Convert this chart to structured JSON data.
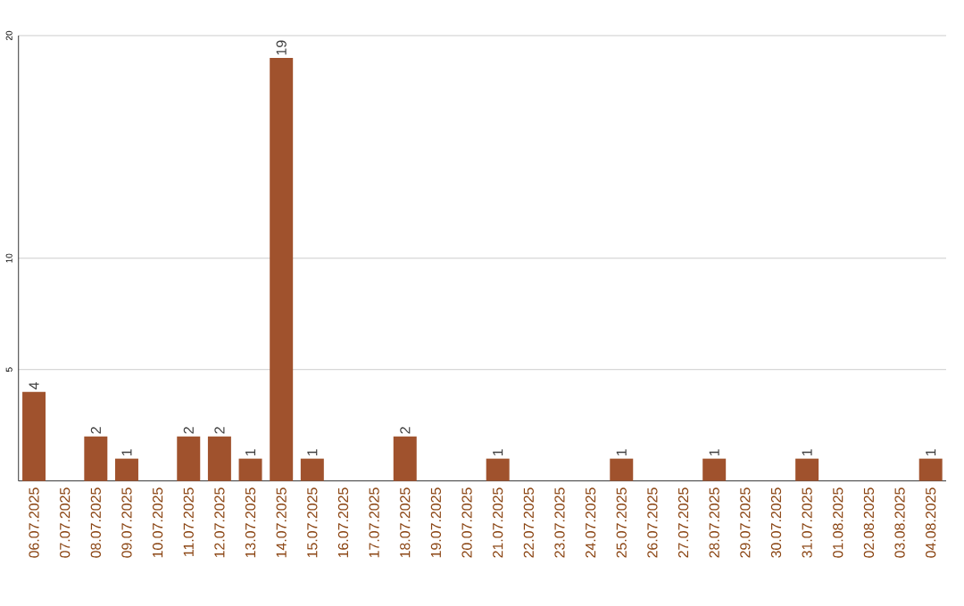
{
  "chart_data": {
    "type": "bar",
    "categories": [
      "06.07.2025",
      "07.07.2025",
      "08.07.2025",
      "09.07.2025",
      "10.07.2025",
      "11.07.2025",
      "12.07.2025",
      "13.07.2025",
      "14.07.2025",
      "15.07.2025",
      "16.07.2025",
      "17.07.2025",
      "18.07.2025",
      "19.07.2025",
      "20.07.2025",
      "21.07.2025",
      "22.07.2025",
      "23.07.2025",
      "24.07.2025",
      "25.07.2025",
      "26.07.2025",
      "27.07.2025",
      "28.07.2025",
      "29.07.2025",
      "30.07.2025",
      "31.07.2025",
      "01.08.2025",
      "02.08.2025",
      "03.08.2025",
      "04.08.2025"
    ],
    "values": [
      4,
      0,
      2,
      1,
      0,
      2,
      2,
      1,
      19,
      1,
      0,
      0,
      2,
      0,
      0,
      1,
      0,
      0,
      0,
      1,
      0,
      0,
      1,
      0,
      0,
      1,
      0,
      0,
      0,
      1
    ],
    "value_labels": [
      "4",
      null,
      "2",
      "1",
      null,
      "2",
      "2",
      "1",
      "19",
      "1",
      null,
      null,
      "2",
      null,
      null,
      "1",
      null,
      null,
      null,
      "1",
      null,
      null,
      "1",
      null,
      null,
      "1",
      null,
      null,
      null,
      "1"
    ],
    "color": "#a0522d",
    "ylim": [
      0,
      20
    ],
    "yticks": [
      5,
      10,
      20
    ],
    "grid": "y"
  }
}
